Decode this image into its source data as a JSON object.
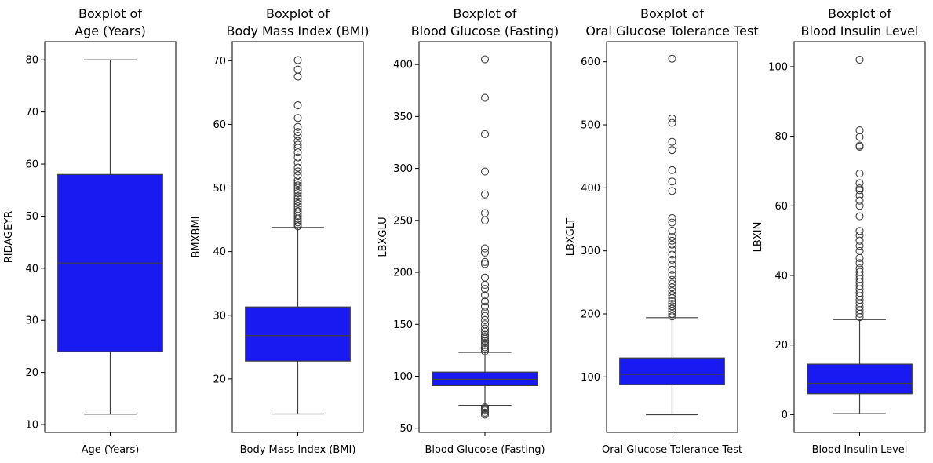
{
  "chart_data": [
    {
      "type": "boxplot",
      "title": [
        "Boxplot of",
        "Age (Years)"
      ],
      "xlabel": "Age (Years)",
      "ylabel": "RIDAGEYR",
      "ylim": [
        8.5,
        83.5
      ],
      "yticks": [
        10,
        20,
        30,
        40,
        50,
        60,
        70,
        80
      ],
      "box": {
        "whislo": 12,
        "q1": 24,
        "med": 41,
        "q3": 58,
        "whishi": 80
      },
      "outliers": [],
      "colors": {
        "box": "#1919f2",
        "edge": "#3f3f3f"
      }
    },
    {
      "type": "boxplot",
      "title": [
        "Boxplot of",
        "Body Mass Index (BMI)"
      ],
      "xlabel": "Body Mass Index (BMI)",
      "ylabel": "BMXBMI",
      "ylim": [
        11.6,
        73.0
      ],
      "yticks": [
        20,
        30,
        40,
        50,
        60,
        70
      ],
      "box": {
        "whislo": 14.5,
        "q1": 22.8,
        "med": 26.8,
        "q3": 31.3,
        "whishi": 43.8
      },
      "outliers": [
        44.0,
        44.3,
        44.6,
        44.9,
        45.2,
        45.6,
        46.0,
        46.3,
        46.7,
        47.1,
        47.5,
        47.9,
        48.3,
        48.7,
        49.2,
        49.6,
        50.0,
        50.4,
        50.8,
        51.2,
        52.0,
        52.6,
        53.2,
        54.0,
        54.8,
        55.6,
        56.3,
        56.8,
        57.4,
        58.2,
        58.8,
        59.6,
        61.0,
        63.0,
        67.5,
        68.6,
        70.1
      ],
      "colors": {
        "box": "#1919f2",
        "edge": "#3f3f3f"
      }
    },
    {
      "type": "boxplot",
      "title": [
        "Boxplot of",
        "Blood Glucose (Fasting)"
      ],
      "xlabel": "Blood Glucose (Fasting)",
      "ylabel": "LBXGLU",
      "ylim": [
        46,
        422
      ],
      "yticks": [
        50,
        100,
        150,
        200,
        250,
        300,
        350,
        400
      ],
      "box": {
        "whislo": 72,
        "q1": 91,
        "med": 97,
        "q3": 104,
        "whishi": 123
      },
      "outliers": [
        63,
        65,
        67,
        68,
        69,
        70,
        124,
        126,
        128,
        130,
        132,
        134,
        136,
        138,
        140,
        143,
        146,
        150,
        154,
        158,
        162,
        167,
        172,
        178,
        184,
        188,
        195,
        208,
        210,
        219,
        223,
        250,
        257,
        275,
        297,
        333,
        368,
        405
      ],
      "colors": {
        "box": "#1919f2",
        "edge": "#3f3f3f"
      }
    },
    {
      "type": "boxplot",
      "title": [
        "Boxplot of",
        "Oral Glucose Tolerance Test"
      ],
      "xlabel": "Oral Glucose Tolerance Test",
      "ylabel": "LBXGLT",
      "ylim": [
        12,
        632
      ],
      "yticks": [
        100,
        200,
        300,
        400,
        500,
        600
      ],
      "box": {
        "whislo": 40,
        "q1": 88,
        "med": 104,
        "q3": 130,
        "whishi": 194
      },
      "outliers": [
        196,
        200,
        204,
        208,
        212,
        216,
        220,
        225,
        230,
        236,
        242,
        248,
        254,
        262,
        270,
        278,
        286,
        294,
        302,
        310,
        316,
        322,
        332,
        345,
        352,
        395,
        410,
        428,
        460,
        473,
        503,
        510,
        605
      ],
      "colors": {
        "box": "#1919f2",
        "edge": "#3f3f3f"
      }
    },
    {
      "type": "boxplot",
      "title": [
        "Boxplot of",
        "Blood Insulin Level"
      ],
      "xlabel": "Blood Insulin Level",
      "ylabel": "LBXIN",
      "ylim": [
        -5.1,
        107.2
      ],
      "yticks": [
        0,
        20,
        40,
        60,
        80,
        100
      ],
      "box": {
        "whislo": 0.3,
        "q1": 6.0,
        "med": 9.0,
        "q3": 14.5,
        "whishi": 27.3
      },
      "outliers": [
        28.0,
        29.0,
        30.0,
        31.0,
        32.0,
        33.0,
        34.0,
        35.0,
        36.0,
        37.0,
        38.0,
        39.0,
        40.0,
        41.0,
        42.0,
        43.5,
        45.0,
        47.0,
        48.5,
        50.0,
        51.5,
        52.8,
        57.0,
        60.0,
        61.5,
        63.0,
        64.5,
        65.0,
        66.5,
        69.3,
        77.0,
        77.3,
        79.8,
        81.7,
        102.0
      ],
      "colors": {
        "box": "#1919f2",
        "edge": "#3f3f3f"
      }
    }
  ]
}
